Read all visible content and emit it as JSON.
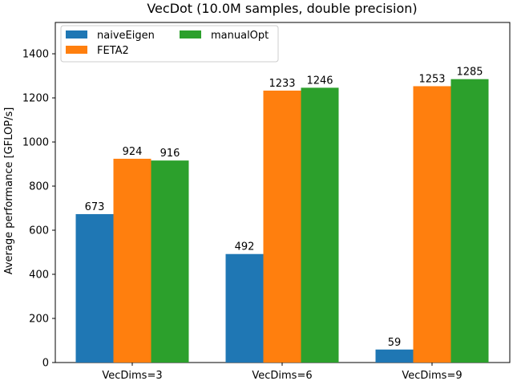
{
  "chart_data": {
    "type": "bar",
    "title": "VecDot (10.0M samples, double precision)",
    "xlabel": "",
    "ylabel": "Average performance [GFLOP/s]",
    "categories": [
      "VecDims=3",
      "VecDims=6",
      "VecDims=9"
    ],
    "series": [
      {
        "name": "naiveEigen",
        "color": "#1f77b4",
        "values": [
          673,
          492,
          59
        ]
      },
      {
        "name": "FETA2",
        "color": "#ff7f0e",
        "values": [
          924,
          1233,
          1253
        ]
      },
      {
        "name": "manualOpt",
        "color": "#2ca02c",
        "values": [
          916,
          1246,
          1285
        ]
      }
    ],
    "ylim": [
      0,
      1542
    ],
    "yticks": [
      0,
      200,
      400,
      600,
      800,
      1000,
      1200,
      1400
    ],
    "grid": false,
    "legend_position": "top-left"
  }
}
